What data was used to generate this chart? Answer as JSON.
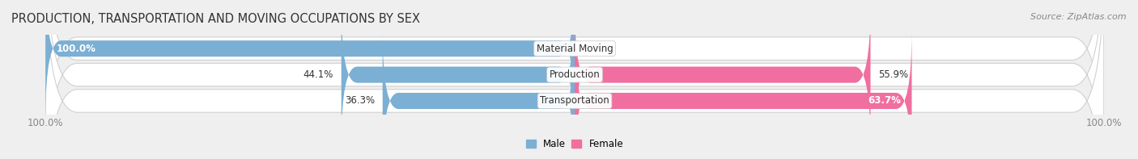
{
  "title": "PRODUCTION, TRANSPORTATION AND MOVING OCCUPATIONS BY SEX",
  "source": "Source: ZipAtlas.com",
  "categories": [
    "Material Moving",
    "Production",
    "Transportation"
  ],
  "male_pct": [
    100.0,
    44.1,
    36.3
  ],
  "female_pct": [
    0.0,
    55.9,
    63.7
  ],
  "male_color": "#7bafd4",
  "female_color": "#f06fa0",
  "male_color_light": "#a8c8e8",
  "female_color_light": "#f5a0c0",
  "bg_color": "#efefef",
  "row_bg_color": "#e0e0e0",
  "title_fontsize": 10.5,
  "source_fontsize": 8,
  "label_fontsize": 8.5,
  "bar_label_fontsize": 8.5,
  "xlim": [
    -100,
    100
  ],
  "bar_height": 0.62,
  "legend_labels": [
    "Male",
    "Female"
  ],
  "axis_label_color": "#888888",
  "text_color_dark": "#333333",
  "text_color_white": "#ffffff"
}
